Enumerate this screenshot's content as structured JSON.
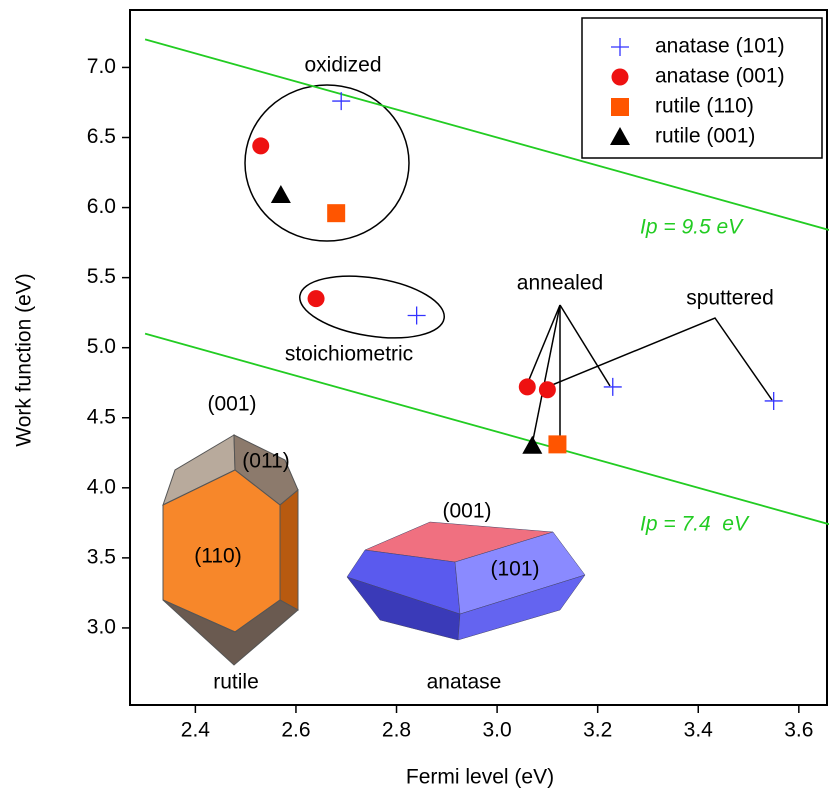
{
  "chart_data": {
    "type": "scatter",
    "x_label": "Fermi level (eV)",
    "y_label": "Work function (eV)",
    "xlim": [
      2.27,
      3.66
    ],
    "ylim": [
      2.45,
      7.41
    ],
    "xticks": [
      2.4,
      2.6,
      2.8,
      {
        "value": 3,
        "label": "3.0"
      },
      3.2,
      3.4,
      3.6
    ],
    "yticks": [
      {
        "value": 3,
        "label": "3.0"
      },
      3.5,
      {
        "value": 4,
        "label": "4.0"
      },
      4.5,
      {
        "value": 5,
        "label": "5.0"
      },
      5.5,
      {
        "value": 6,
        "label": "6.0"
      },
      6.5,
      {
        "value": 7,
        "label": "7.0"
      }
    ],
    "series": [
      {
        "name": "anatase (101)",
        "marker": "plus",
        "color": "#3333ff",
        "x": [
          2.69,
          2.84,
          3.23,
          3.55
        ],
        "values": [
          6.76,
          5.23,
          4.72,
          4.62
        ]
      },
      {
        "name": "anatase (001)",
        "marker": "circle",
        "color": "#ee1111",
        "x": [
          2.53,
          2.64,
          3.06,
          3.1
        ],
        "values": [
          6.44,
          5.35,
          4.72,
          4.7
        ]
      },
      {
        "name": "rutile (110)",
        "marker": "square",
        "color": "#ff5500",
        "x": [
          2.68,
          3.12
        ],
        "values": [
          5.96,
          4.31
        ]
      },
      {
        "name": "rutile (001)",
        "marker": "triangle",
        "color": "#000000",
        "x": [
          2.57,
          3.07
        ],
        "values": [
          6.09,
          4.3
        ]
      }
    ],
    "lines": [
      {
        "label": "Ip = 9.5 eV",
        "color": "#22cc22",
        "x": [
          2.3,
          3.66
        ],
        "y": [
          7.2,
          5.84
        ]
      },
      {
        "label": "Ip = 7.4  eV",
        "color": "#22cc22",
        "x": [
          2.3,
          3.66
        ],
        "y": [
          5.1,
          3.74
        ]
      }
    ],
    "annotations": [
      "oxidized",
      "stoichiometric",
      "annealed",
      "sputtered",
      "(001)",
      "(011)",
      "(110)",
      "rutile",
      "(001)",
      "(101)",
      "anatase"
    ]
  }
}
